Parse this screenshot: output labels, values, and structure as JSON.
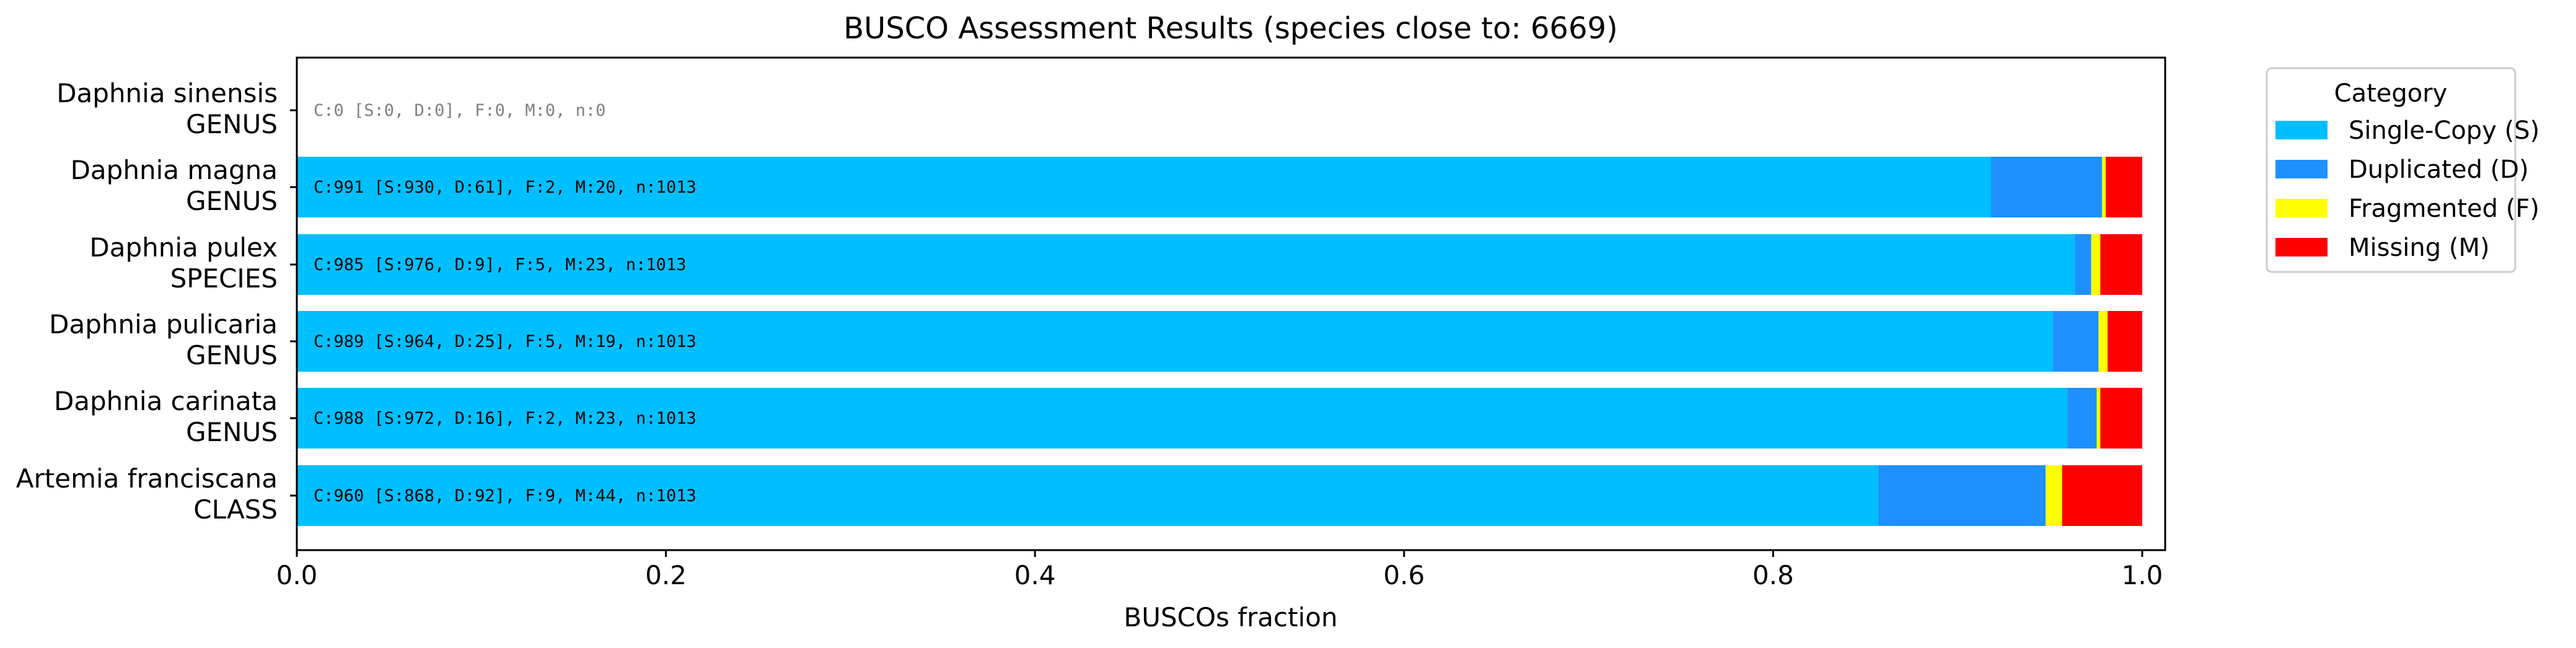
{
  "chart_data": {
    "type": "bar",
    "orientation": "horizontal",
    "stacked": true,
    "title": "BUSCO Assessment Results (species close to: 6669)",
    "xlabel": "BUSCOs fraction",
    "ylabel": "",
    "xlim": [
      0,
      1.01
    ],
    "xticks": [
      "0.0",
      "0.2",
      "0.4",
      "0.6",
      "0.8",
      "1.0"
    ],
    "xtick_values": [
      0,
      0.2,
      0.4,
      0.6,
      0.8,
      1.0
    ],
    "grid": false,
    "legend_position": "outside-top-right",
    "legend_title": "Category",
    "categories": [
      {
        "name": "Daphnia sinensis",
        "rank": "GENUS",
        "S": 0,
        "D": 0,
        "F": 0,
        "M": 0,
        "n": 0,
        "summary": "C:0 [S:0, D:0], F:0, M:0, n:0"
      },
      {
        "name": "Daphnia magna",
        "rank": "GENUS",
        "S": 930,
        "D": 61,
        "F": 2,
        "M": 20,
        "n": 1013,
        "summary": "C:991 [S:930, D:61], F:2, M:20, n:1013"
      },
      {
        "name": "Daphnia pulex",
        "rank": "SPECIES",
        "S": 976,
        "D": 9,
        "F": 5,
        "M": 23,
        "n": 1013,
        "summary": "C:985 [S:976, D:9], F:5, M:23, n:1013"
      },
      {
        "name": "Daphnia pulicaria",
        "rank": "GENUS",
        "S": 964,
        "D": 25,
        "F": 5,
        "M": 19,
        "n": 1013,
        "summary": "C:989 [S:964, D:25], F:5, M:19, n:1013"
      },
      {
        "name": "Daphnia carinata",
        "rank": "GENUS",
        "S": 972,
        "D": 16,
        "F": 2,
        "M": 23,
        "n": 1013,
        "summary": "C:988 [S:972, D:16], F:2, M:23, n:1013"
      },
      {
        "name": "Artemia franciscana",
        "rank": "CLASS",
        "S": 868,
        "D": 92,
        "F": 9,
        "M": 44,
        "n": 1013,
        "summary": "C:960 [S:868, D:92], F:9, M:44, n:1013"
      }
    ],
    "series": [
      {
        "key": "S",
        "name": "Single-Copy (S)",
        "color": "#00bfff"
      },
      {
        "key": "D",
        "name": "Duplicated (D)",
        "color": "#1e90ff"
      },
      {
        "key": "F",
        "name": "Fragmented (F)",
        "color": "#ffff00"
      },
      {
        "key": "M",
        "name": "Missing (M)",
        "color": "#ff0000"
      }
    ]
  }
}
